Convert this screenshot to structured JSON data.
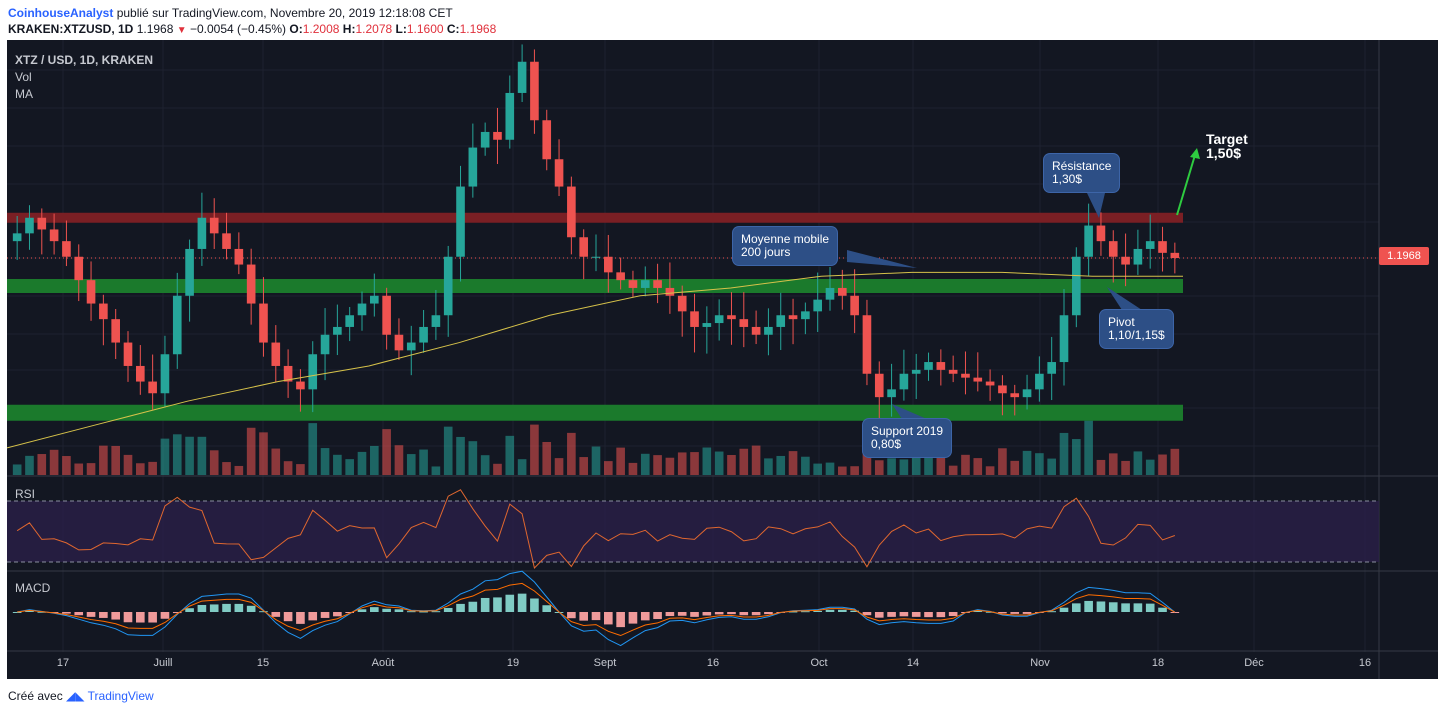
{
  "header": {
    "author": "CoinhouseAnalyst",
    "published_on": "publié sur TradingView.com, Novembre 20, 2019 12:18:08 CET",
    "symbol": "KRAKEN:XTZUSD, 1D",
    "last": "1.1968",
    "change": "−0.0054 (−0.45%)",
    "o_label": "O:",
    "o_value": "1.2008",
    "h_label": "H:",
    "h_value": "1.2078",
    "l_label": "L:",
    "l_value": "1.1600",
    "c_label": "C:",
    "c_value": "1.1968"
  },
  "chart": {
    "symbol_label": "XTZ / USD, 1D, KRAKEN",
    "vol_label": "Vol",
    "ma_label": "MA",
    "rsi_label": "RSI",
    "macd_label": "MACD",
    "price_tag": "1.1968",
    "annotations": {
      "resistance": [
        "Résistance",
        "1,30$"
      ],
      "moyenne": [
        "Moyenne mobile",
        "200 jours"
      ],
      "pivot": [
        "Pivot",
        "1,10/1,15$"
      ],
      "support": [
        "Support 2019",
        "0,80$"
      ],
      "target": [
        "Target",
        "1,50$"
      ]
    },
    "x_ticks": [
      "17",
      "Juill",
      "15",
      "Août",
      "19",
      "Sept",
      "16",
      "Oct",
      "14",
      "Nov",
      "18",
      "Déc",
      "16"
    ]
  },
  "footer": {
    "text": "Créé avec",
    "brand": "TradingView"
  },
  "colors": {
    "background": "#131722",
    "up": "#26a69a",
    "down": "#ef5350",
    "resistance_band": "#7a1f24",
    "support_band": "#1b7a2c",
    "ma": "#d6c24a",
    "rsi_line": "#e0672f",
    "macd_line": "#2196f3",
    "signal_line": "#ff6d00",
    "annotation": "#2d4f86",
    "target_arrow": "#2ecc40"
  },
  "chart_data": {
    "type": "candlestick",
    "symbol": "XTZ / USD",
    "interval": "1D",
    "exchange": "KRAKEN",
    "last_price": 1.1968,
    "resistance_level": 1.3,
    "pivot_zone": [
      1.1,
      1.15
    ],
    "support_level": 0.8,
    "target": 1.5,
    "close_series": [
      1.26,
      1.3,
      1.27,
      1.24,
      1.2,
      1.14,
      1.08,
      1.04,
      0.98,
      0.92,
      0.88,
      0.85,
      0.95,
      1.1,
      1.22,
      1.3,
      1.26,
      1.22,
      1.18,
      1.08,
      0.98,
      0.92,
      0.88,
      0.86,
      0.95,
      1.0,
      1.02,
      1.05,
      1.08,
      1.1,
      1.0,
      0.96,
      0.98,
      1.02,
      1.05,
      1.2,
      1.38,
      1.48,
      1.52,
      1.5,
      1.62,
      1.7,
      1.55,
      1.45,
      1.38,
      1.25,
      1.2,
      1.2,
      1.16,
      1.14,
      1.12,
      1.14,
      1.12,
      1.1,
      1.06,
      1.02,
      1.03,
      1.05,
      1.04,
      1.02,
      1.0,
      1.02,
      1.05,
      1.04,
      1.06,
      1.09,
      1.12,
      1.1,
      1.05,
      0.9,
      0.84,
      0.86,
      0.9,
      0.91,
      0.93,
      0.91,
      0.9,
      0.89,
      0.88,
      0.87,
      0.85,
      0.84,
      0.86,
      0.9,
      0.93,
      1.05,
      1.2,
      1.28,
      1.24,
      1.2,
      1.18,
      1.22,
      1.24,
      1.21,
      1.1968
    ],
    "ma_series": [
      0.71,
      0.77,
      0.83,
      0.88,
      0.92,
      0.98,
      1.05,
      1.1,
      1.12,
      1.15,
      1.16,
      1.16,
      1.15,
      1.15
    ],
    "rsi_levels": [
      70,
      30
    ],
    "x_ticks": [
      "17",
      "Juill",
      "15",
      "Août",
      "19",
      "Sept",
      "16",
      "Oct",
      "14",
      "Nov",
      "18",
      "Déc",
      "16"
    ]
  }
}
